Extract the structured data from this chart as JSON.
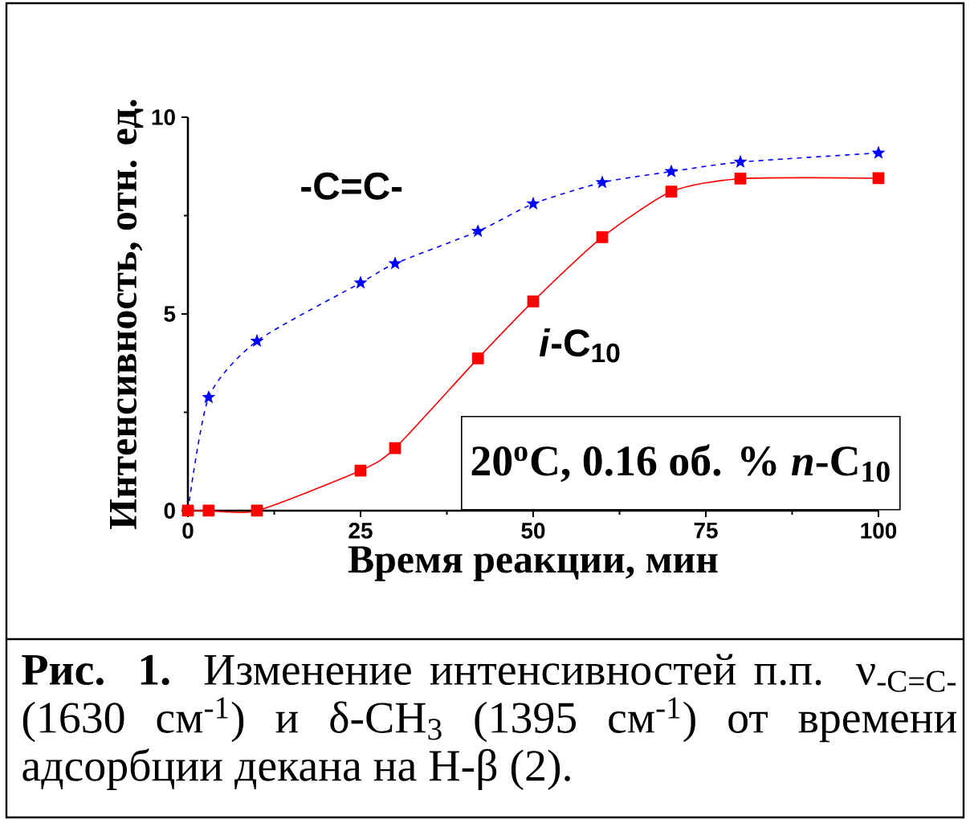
{
  "chart_data": {
    "type": "line",
    "xlabel": "Время реакции, мин",
    "ylabel": "Интенсивность, отн. ед.",
    "x": [
      0,
      3,
      10,
      25,
      30,
      42,
      50,
      60,
      70,
      80,
      100
    ],
    "series": [
      {
        "name": "-C=C-",
        "color": "#0000ff",
        "marker": "star",
        "line_style": "dashed",
        "values": [
          0,
          2.88,
          4.31,
          5.79,
          6.28,
          7.1,
          7.8,
          8.34,
          8.62,
          8.86,
          9.09
        ]
      },
      {
        "name": "*i*-C$_{10}$",
        "color": "#ff0000",
        "marker": "square",
        "line_style": "solid",
        "values": [
          0,
          0,
          0,
          1.02,
          1.59,
          3.87,
          5.32,
          6.95,
          8.11,
          8.44,
          8.45
        ]
      }
    ],
    "xlim": [
      0,
      100
    ],
    "xticks": [
      0,
      25,
      50,
      75,
      100
    ],
    "ylim": [
      0,
      10
    ],
    "yticks": [
      0,
      5,
      10
    ],
    "grid": false,
    "legend": false,
    "annotations": [
      "20$^{o}$C, 0.16 об. % *n*-C$_{10}$",
      "**Рис. 1.** Изменение интенсивностей п.п. ν$_{-C=C-}$ (1630 см$^{-1}$) и δ-CH$_{3}$ (1395 см$^{-1}$) от времени адсорбции декана на H-β (2)."
    ]
  }
}
